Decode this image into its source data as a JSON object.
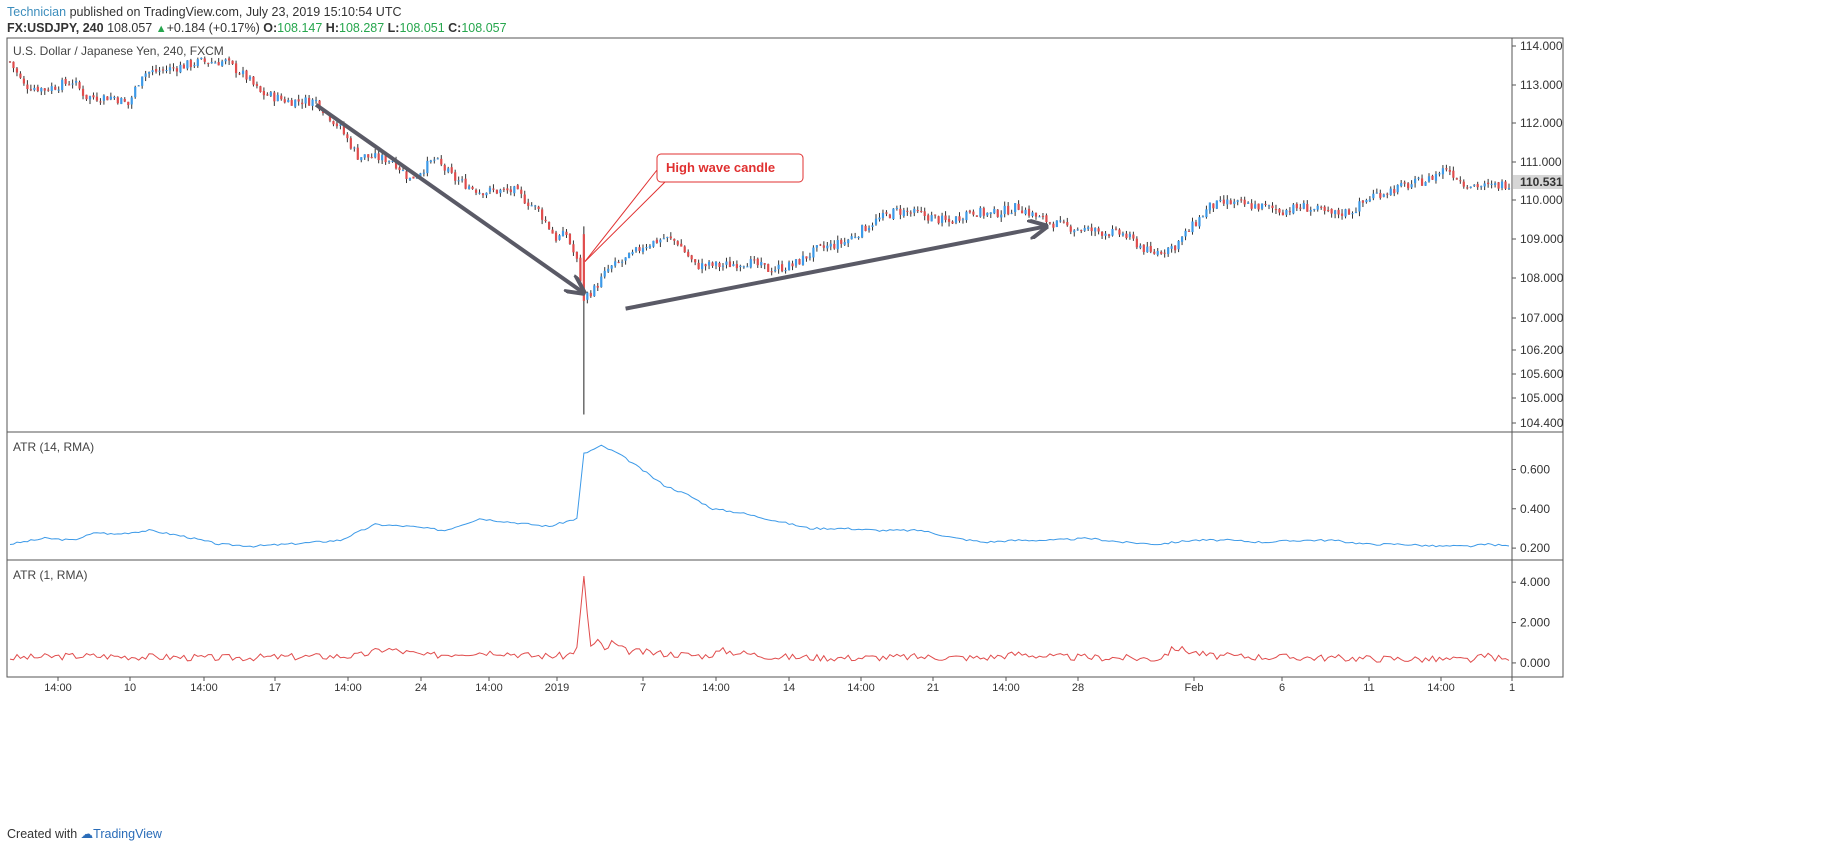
{
  "header": {
    "author": "Technician",
    "published": "published on TradingView.com, July 23, 2019 15:10:54 UTC",
    "symbol": "FX:USDJPY, 240",
    "last": "108.057",
    "change": "+0.184 (+0.17%)",
    "o_label": "O:",
    "o_value": "108.147",
    "h_label": "H:",
    "h_value": "108.287",
    "l_label": "L:",
    "l_value": "108.051",
    "c_label": "C:",
    "c_value": "108.057"
  },
  "footer": {
    "created_with": "Created with",
    "brand": "TradingView"
  },
  "colors": {
    "up": "#3d9ae8",
    "down": "#e04c4c",
    "atr14": "#3d9ae8",
    "atr1": "#e04c4c",
    "arrow": "#5a5a66",
    "annotation": "#e03030"
  },
  "chart_data": [
    {
      "type": "candlestick",
      "title": "U.S. Dollar / Japanese Yen, 240, FXCM",
      "y_ticks": [
        "114.000",
        "113.000",
        "112.000",
        "111.000",
        "110.000",
        "109.000",
        "108.000",
        "107.000",
        "106.200",
        "105.600",
        "105.000",
        "104.400"
      ],
      "current_price": "110.531",
      "annotation": "High wave candle",
      "path_points": [
        [
          0,
          113.6
        ],
        [
          4,
          113.0
        ],
        [
          10,
          112.9
        ],
        [
          18,
          113.1
        ],
        [
          22,
          112.7
        ],
        [
          30,
          112.7
        ],
        [
          34,
          112.5
        ],
        [
          38,
          113.3
        ],
        [
          45,
          113.4
        ],
        [
          55,
          113.6
        ],
        [
          62,
          113.6
        ],
        [
          68,
          113.2
        ],
        [
          72,
          112.8
        ],
        [
          80,
          112.6
        ],
        [
          88,
          112.6
        ],
        [
          95,
          111.9
        ],
        [
          100,
          111.2
        ],
        [
          110,
          111.1
        ],
        [
          115,
          110.6
        ],
        [
          122,
          111.1
        ],
        [
          128,
          110.6
        ],
        [
          135,
          110.3
        ],
        [
          145,
          110.3
        ],
        [
          152,
          109.8
        ],
        [
          157,
          109.1
        ],
        [
          160,
          109.2
        ],
        [
          163,
          108.5
        ],
        [
          165,
          107.6
        ],
        [
          168,
          107.8
        ],
        [
          172,
          108.3
        ],
        [
          178,
          108.6
        ],
        [
          182,
          108.9
        ],
        [
          188,
          109.1
        ],
        [
          192,
          109.0
        ],
        [
          197,
          108.4
        ],
        [
          205,
          108.4
        ],
        [
          212,
          108.5
        ],
        [
          218,
          108.3
        ],
        [
          225,
          108.4
        ],
        [
          232,
          108.8
        ],
        [
          240,
          109.0
        ],
        [
          248,
          109.5
        ],
        [
          255,
          109.8
        ],
        [
          262,
          109.7
        ],
        [
          270,
          109.5
        ],
        [
          276,
          109.8
        ],
        [
          282,
          109.7
        ],
        [
          290,
          109.9
        ],
        [
          296,
          109.6
        ],
        [
          303,
          109.4
        ],
        [
          310,
          109.3
        ],
        [
          320,
          109.2
        ],
        [
          325,
          108.9
        ],
        [
          328,
          108.7
        ],
        [
          335,
          108.9
        ],
        [
          340,
          109.4
        ],
        [
          345,
          109.9
        ],
        [
          350,
          110.0
        ],
        [
          360,
          109.9
        ],
        [
          366,
          109.8
        ],
        [
          372,
          109.9
        ],
        [
          380,
          109.7
        ],
        [
          386,
          109.8
        ],
        [
          392,
          110.2
        ],
        [
          400,
          110.4
        ],
        [
          408,
          110.6
        ],
        [
          413,
          110.9
        ],
        [
          418,
          110.5
        ],
        [
          425,
          110.4
        ],
        [
          431,
          110.5
        ]
      ],
      "big_candle": {
        "index": 165,
        "open": 109.2,
        "high": 109.4,
        "low": 104.6,
        "close": 107.5
      },
      "arrows": [
        {
          "from": [
            88,
            112.5
          ],
          "to": [
            165,
            107.7
          ]
        },
        {
          "from": [
            177,
            107.3
          ],
          "to": [
            298,
            109.4
          ]
        }
      ]
    },
    {
      "type": "line",
      "title": "ATR (14, RMA)",
      "y_ticks": [
        "0.600",
        "0.400",
        "0.200"
      ],
      "y_range": [
        0.17,
        0.76
      ],
      "series": [
        {
          "points": [
            [
              0,
              0.22
            ],
            [
              10,
              0.25
            ],
            [
              18,
              0.24
            ],
            [
              25,
              0.28
            ],
            [
              30,
              0.27
            ],
            [
              40,
              0.29
            ],
            [
              50,
              0.26
            ],
            [
              60,
              0.22
            ],
            [
              70,
              0.21
            ],
            [
              80,
              0.22
            ],
            [
              95,
              0.24
            ],
            [
              105,
              0.32
            ],
            [
              115,
              0.31
            ],
            [
              125,
              0.29
            ],
            [
              135,
              0.35
            ],
            [
              145,
              0.33
            ],
            [
              155,
              0.31
            ],
            [
              163,
              0.35
            ],
            [
              165,
              0.68
            ],
            [
              170,
              0.72
            ],
            [
              175,
              0.68
            ],
            [
              180,
              0.62
            ],
            [
              188,
              0.52
            ],
            [
              195,
              0.47
            ],
            [
              202,
              0.4
            ],
            [
              210,
              0.38
            ],
            [
              220,
              0.34
            ],
            [
              230,
              0.3
            ],
            [
              240,
              0.3
            ],
            [
              250,
              0.29
            ],
            [
              262,
              0.29
            ],
            [
              272,
              0.25
            ],
            [
              280,
              0.23
            ],
            [
              290,
              0.24
            ],
            [
              300,
              0.24
            ],
            [
              310,
              0.25
            ],
            [
              320,
              0.23
            ],
            [
              330,
              0.22
            ],
            [
              340,
              0.24
            ],
            [
              350,
              0.24
            ],
            [
              360,
              0.23
            ],
            [
              372,
              0.24
            ],
            [
              380,
              0.24
            ],
            [
              390,
              0.22
            ],
            [
              400,
              0.22
            ],
            [
              410,
              0.21
            ],
            [
              420,
              0.21
            ],
            [
              425,
              0.22
            ],
            [
              431,
              0.21
            ]
          ]
        }
      ]
    },
    {
      "type": "line",
      "title": "ATR (1, RMA)",
      "y_ticks": [
        "4.000",
        "2.000",
        "0.000"
      ],
      "y_range": [
        -0.4,
        4.8
      ],
      "series": [
        {
          "points": [
            [
              0,
              0.25
            ],
            [
              20,
              0.35
            ],
            [
              40,
              0.3
            ],
            [
              60,
              0.25
            ],
            [
              80,
              0.3
            ],
            [
              100,
              0.35
            ],
            [
              108,
              0.7
            ],
            [
              120,
              0.35
            ],
            [
              130,
              0.5
            ],
            [
              140,
              0.55
            ],
            [
              150,
              0.35
            ],
            [
              160,
              0.35
            ],
            [
              163,
              0.7
            ],
            [
              165,
              4.2
            ],
            [
              167,
              0.8
            ],
            [
              169,
              1.1
            ],
            [
              171,
              0.6
            ],
            [
              173,
              1.0
            ],
            [
              177,
              0.6
            ],
            [
              185,
              0.5
            ],
            [
              200,
              0.35
            ],
            [
              205,
              0.6
            ],
            [
              220,
              0.3
            ],
            [
              240,
              0.25
            ],
            [
              260,
              0.3
            ],
            [
              280,
              0.25
            ],
            [
              290,
              0.45
            ],
            [
              300,
              0.3
            ],
            [
              320,
              0.25
            ],
            [
              330,
              0.2
            ],
            [
              335,
              0.75
            ],
            [
              345,
              0.35
            ],
            [
              360,
              0.3
            ],
            [
              380,
              0.25
            ],
            [
              400,
              0.2
            ],
            [
              420,
              0.15
            ],
            [
              425,
              0.35
            ],
            [
              431,
              0.1
            ]
          ]
        }
      ]
    }
  ],
  "x_ticks": [
    "14:00",
    "10",
    "14:00",
    "17",
    "14:00",
    "24",
    "14:00",
    "2019",
    "7",
    "14:00",
    "14",
    "14:00",
    "21",
    "14:00",
    "28",
    "Feb",
    "6",
    "11",
    "14:00",
    "1"
  ]
}
